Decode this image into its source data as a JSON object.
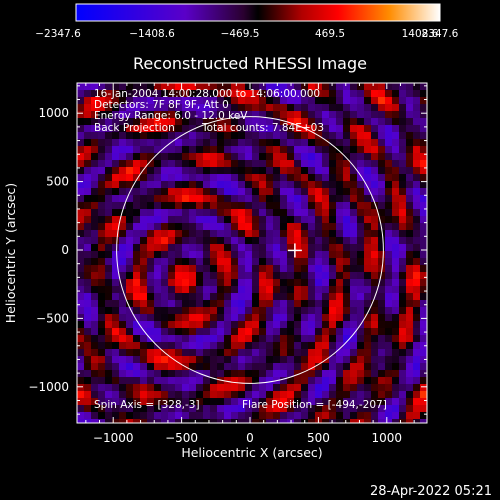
{
  "chart_data": {
    "type": "heatmap",
    "title": "Reconstructed RHESSI Image",
    "xlabel": "Heliocentric X (arcsec)",
    "ylabel": "Heliocentric Y (arcsec)",
    "xlim": [
      -1300,
      1300
    ],
    "ylim": [
      -1250,
      1250
    ],
    "x_ticks": [
      -1000,
      -500,
      0,
      500,
      1000
    ],
    "x_tick_labels": [
      "−1000",
      "−500",
      "0",
      "500",
      "1000"
    ],
    "y_ticks": [
      -1000,
      -500,
      0,
      500,
      1000
    ],
    "y_tick_labels": [
      "−1000",
      "−500",
      "0",
      "500",
      "1000"
    ],
    "colorbar": {
      "range": [
        -2347.6,
        2347.6
      ],
      "ticks": [
        "−2347.6",
        "−1408.6",
        "−469.5",
        "469.5",
        "1408.6",
        "2347.6"
      ],
      "colors": [
        "#0000ff",
        "#5a00c8",
        "#2a0030",
        "#000000",
        "#ff0000",
        "#ff8c00",
        "#ffffff"
      ]
    },
    "annotations": {
      "time_range": "16-Jan-2004 14:00:28.000 to 14:06:00.000",
      "detectors": "Detectors: 7F 8F 9F, Att 0",
      "energy": "Energy Range: 6.0 - 12.0 keV",
      "method": "Back Projection",
      "counts": "Total counts: 7.84E+03",
      "spin_axis": "Spin Axis = [328,-3]",
      "flare_position": "Flare Position = [-494,-207]"
    },
    "solar_limb_radius_arcsec": 975,
    "marker": {
      "x": 328,
      "y": -3
    },
    "footer_timestamp": "28-Apr-2022 05:21"
  }
}
